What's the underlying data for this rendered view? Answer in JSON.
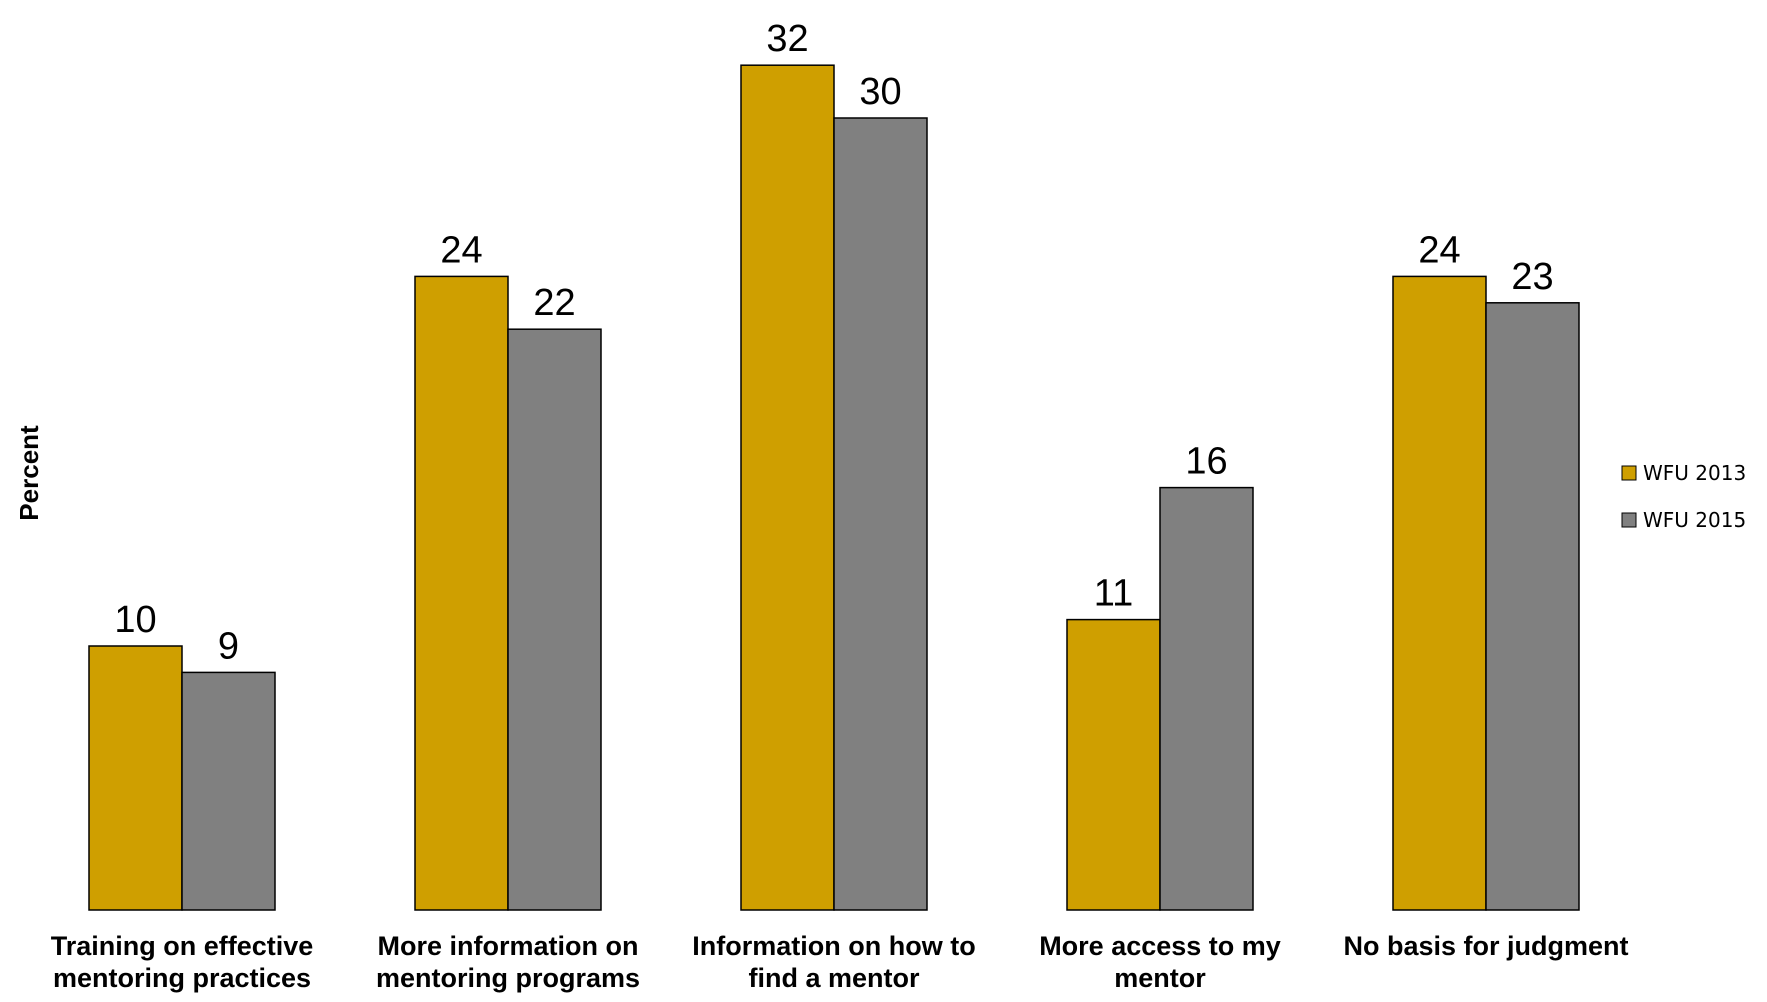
{
  "chart_data": {
    "type": "bar",
    "ylabel": "Percent",
    "xlabel": "",
    "ylim": [
      0,
      34
    ],
    "grid": false,
    "legend_position": "right",
    "categories": [
      [
        "Training on effective",
        "mentoring practices"
      ],
      [
        "More information on",
        "mentoring programs"
      ],
      [
        "Information on how to",
        "find a mentor"
      ],
      [
        "More access to my",
        "mentor"
      ],
      [
        "No basis for judgment"
      ]
    ],
    "series": [
      {
        "name": "WFU 2013",
        "color": "#CF9F00",
        "values": [
          10,
          24,
          32,
          11,
          24
        ]
      },
      {
        "name": "WFU 2015",
        "color": "#808080",
        "values": [
          9,
          22,
          30,
          16,
          23
        ]
      }
    ]
  }
}
